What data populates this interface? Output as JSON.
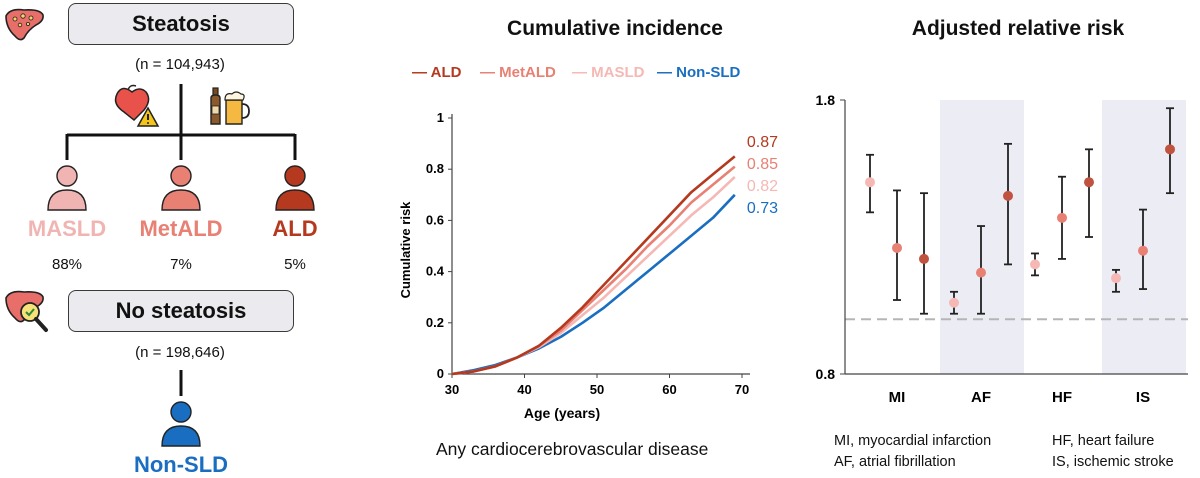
{
  "flow": {
    "steatosis_label": "Steatosis",
    "steatosis_n": "(n = 104,943)",
    "groups": [
      {
        "label": "MASLD",
        "pct": "88%",
        "color": "#f0b5b2"
      },
      {
        "label": "MetALD",
        "pct": "7%",
        "color": "#e88074"
      },
      {
        "label": "ALD",
        "pct": "5%",
        "color": "#b5391e"
      }
    ],
    "no_steatosis_label": "No steatosis",
    "no_steatosis_n": "(n = 198,646)",
    "nonsld_label": "Non-SLD",
    "nonsld_color": "#1a6ec1"
  },
  "captions": {
    "middle_title": "Cumulative incidence",
    "middle_subtitle": "Any cardiocerebrovascular disease",
    "right_title": "Adjusted relative risk",
    "abbrev_left_1": "MI, myocardial infarction",
    "abbrev_left_2": "AF, atrial fibrillation",
    "abbrev_right_1": "HF, heart failure",
    "abbrev_right_2": "IS, ischemic stroke"
  },
  "chart_data": [
    {
      "type": "line",
      "title": "Cumulative incidence",
      "xlabel": "Age (years)",
      "ylabel": "Cumulative risk",
      "xlim": [
        30,
        70
      ],
      "ylim": [
        0,
        1
      ],
      "x_ticks": [
        "30",
        "40",
        "50",
        "60",
        "70"
      ],
      "y_ticks": [
        "0",
        "0.2",
        "0.4",
        "0.6",
        "0.8",
        "1"
      ],
      "x": [
        30,
        33,
        36,
        39,
        42,
        45,
        48,
        51,
        54,
        57,
        60,
        63,
        66,
        69
      ],
      "series": [
        {
          "name": "ALD",
          "color": "#b5391e",
          "final_label": "0.87",
          "values": [
            0,
            0.01,
            0.03,
            0.065,
            0.11,
            0.18,
            0.26,
            0.35,
            0.44,
            0.53,
            0.62,
            0.71,
            0.78,
            0.85
          ]
        },
        {
          "name": "MetALD",
          "color": "#e88074",
          "final_label": "0.85",
          "values": [
            0,
            0.01,
            0.03,
            0.065,
            0.11,
            0.17,
            0.25,
            0.33,
            0.41,
            0.5,
            0.58,
            0.67,
            0.74,
            0.81
          ]
        },
        {
          "name": "MASLD",
          "color": "#f5b8b4",
          "final_label": "0.82",
          "values": [
            0,
            0.01,
            0.03,
            0.065,
            0.105,
            0.16,
            0.23,
            0.3,
            0.38,
            0.46,
            0.54,
            0.62,
            0.69,
            0.77
          ]
        },
        {
          "name": "Non-SLD",
          "color": "#1a6ec1",
          "final_label": "0.73",
          "values": [
            0,
            0.015,
            0.035,
            0.065,
            0.1,
            0.145,
            0.2,
            0.26,
            0.33,
            0.4,
            0.47,
            0.54,
            0.61,
            0.7
          ]
        }
      ]
    },
    {
      "type": "scatter",
      "title": "Adjusted relative risk",
      "ylim": [
        0.8,
        1.8
      ],
      "y_ticks": [
        "0.8",
        "1.8"
      ],
      "reference_line": 1.0,
      "categories": [
        "MI",
        "AF",
        "HF",
        "IS"
      ],
      "shaded_categories": [
        "AF",
        "IS"
      ],
      "groups": [
        "MASLD",
        "MetALD",
        "ALD"
      ],
      "estimates": {
        "MI": [
          {
            "group": "MASLD",
            "est": 1.5,
            "lo": 1.39,
            "hi": 1.6
          },
          {
            "group": "MetALD",
            "est": 1.26,
            "lo": 1.07,
            "hi": 1.47
          },
          {
            "group": "ALD",
            "est": 1.22,
            "lo": 1.02,
            "hi": 1.46
          }
        ],
        "AF": [
          {
            "group": "MASLD",
            "est": 1.06,
            "lo": 1.02,
            "hi": 1.1
          },
          {
            "group": "MetALD",
            "est": 1.17,
            "lo": 1.02,
            "hi": 1.34
          },
          {
            "group": "ALD",
            "est": 1.45,
            "lo": 1.2,
            "hi": 1.64
          }
        ],
        "HF": [
          {
            "group": "MASLD",
            "est": 1.2,
            "lo": 1.16,
            "hi": 1.24
          },
          {
            "group": "MetALD",
            "est": 1.37,
            "lo": 1.22,
            "hi": 1.52
          },
          {
            "group": "ALD",
            "est": 1.5,
            "lo": 1.3,
            "hi": 1.62
          }
        ],
        "IS": [
          {
            "group": "MASLD",
            "est": 1.15,
            "lo": 1.1,
            "hi": 1.18
          },
          {
            "group": "MetALD",
            "est": 1.25,
            "lo": 1.11,
            "hi": 1.4
          },
          {
            "group": "ALD",
            "est": 1.62,
            "lo": 1.46,
            "hi": 1.77
          }
        ]
      },
      "group_colors": {
        "MASLD": "#f5b8b4",
        "MetALD": "#e88074",
        "ALD": "#c0533f"
      }
    }
  ]
}
